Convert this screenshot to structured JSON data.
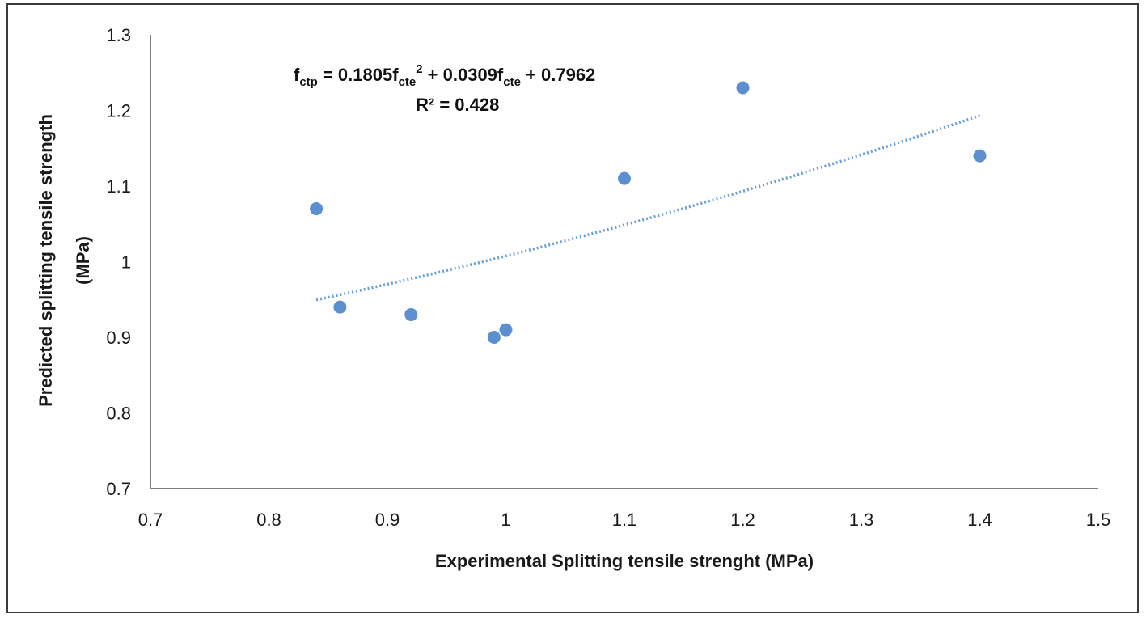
{
  "chart_data": {
    "type": "scatter",
    "xlabel": "Experimental Splitting tensile strenght (MPa)",
    "ylabel_lines": [
      "Predicted splitting tensile strength",
      "(MPa)"
    ],
    "xlim": [
      0.7,
      1.5
    ],
    "ylim": [
      0.7,
      1.3
    ],
    "x_ticks": [
      0.7,
      0.8,
      0.9,
      1.0,
      1.1,
      1.2,
      1.3,
      1.4,
      1.5
    ],
    "x_tick_labels": [
      "0.7",
      "0.8",
      "0.9",
      "1",
      "1.1",
      "1.2",
      "1.3",
      "1.4",
      "1.5"
    ],
    "y_ticks": [
      0.7,
      0.8,
      0.9,
      1.0,
      1.1,
      1.2,
      1.3
    ],
    "y_tick_labels": [
      "0.7",
      "0.8",
      "0.9",
      "1",
      "1.1",
      "1.2",
      "1.3"
    ],
    "grid": false,
    "points": [
      {
        "x": 0.84,
        "y": 1.07
      },
      {
        "x": 0.86,
        "y": 0.94
      },
      {
        "x": 0.92,
        "y": 0.93
      },
      {
        "x": 0.99,
        "y": 0.9
      },
      {
        "x": 1.0,
        "y": 0.91
      },
      {
        "x": 1.1,
        "y": 1.11
      },
      {
        "x": 1.2,
        "y": 1.23
      },
      {
        "x": 1.4,
        "y": 1.14
      }
    ],
    "trendline": {
      "type": "polynomial",
      "coefficients": [
        0.1805,
        0.0309,
        0.7962
      ],
      "x_range": [
        0.84,
        1.4
      ],
      "style": "dotted"
    },
    "annotation": {
      "equation_parts": {
        "f1": "f",
        "sub1": "ctp",
        "eq_mid1": " = 0.1805f",
        "sub2": "cte",
        "sup2": "2",
        "eq_mid2": " + 0.0309f",
        "sub3": "cte",
        "eq_end": " + 0.7962"
      },
      "r_squared": "R² = 0.428"
    },
    "colors": {
      "marker": "#5b8fcf",
      "trendline": "#6a9fd4",
      "axis": "#7f7f7f"
    }
  }
}
